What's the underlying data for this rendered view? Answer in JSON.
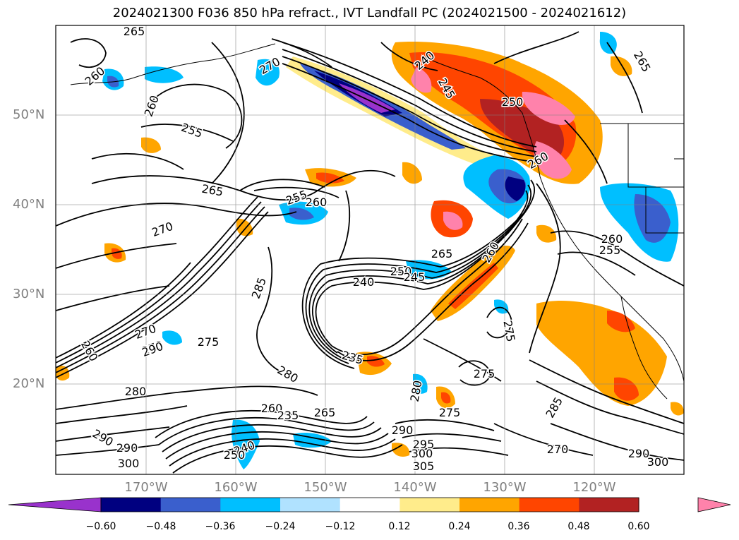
{
  "title": "2024021300 F036 850 hPa refract., IVT Landfall PC (2024021500 - 2024021612)",
  "map": {
    "lat_labels": [
      "50°N",
      "40°N",
      "30°N",
      "20°N"
    ],
    "lon_labels": [
      "170°W",
      "160°W",
      "150°W",
      "140°W",
      "130°W",
      "120°W"
    ],
    "contour_labels": [
      {
        "t": "265"
      },
      {
        "t": "260"
      },
      {
        "t": "260"
      },
      {
        "t": "255"
      },
      {
        "t": "270"
      },
      {
        "t": "265"
      },
      {
        "t": "255"
      },
      {
        "t": "260"
      },
      {
        "t": "270"
      },
      {
        "t": "285"
      },
      {
        "t": "240"
      },
      {
        "t": "245"
      },
      {
        "t": "250"
      },
      {
        "t": "260"
      },
      {
        "t": "265"
      },
      {
        "t": "265"
      },
      {
        "t": "250"
      },
      {
        "t": "245"
      },
      {
        "t": "260"
      },
      {
        "t": "275"
      },
      {
        "t": "255"
      },
      {
        "t": "260"
      },
      {
        "t": "240"
      },
      {
        "t": "270"
      },
      {
        "t": "270"
      },
      {
        "t": "290"
      },
      {
        "t": "275"
      },
      {
        "t": "260"
      },
      {
        "t": "280"
      },
      {
        "t": "235"
      },
      {
        "t": "280"
      },
      {
        "t": "275"
      },
      {
        "t": "275"
      },
      {
        "t": "285"
      },
      {
        "t": "280"
      },
      {
        "t": "290"
      },
      {
        "t": "290"
      },
      {
        "t": "300"
      },
      {
        "t": "260"
      },
      {
        "t": "265"
      },
      {
        "t": "235"
      },
      {
        "t": "240"
      },
      {
        "t": "250"
      },
      {
        "t": "290"
      },
      {
        "t": "295"
      },
      {
        "t": "300"
      },
      {
        "t": "305"
      },
      {
        "t": "270"
      },
      {
        "t": "290"
      },
      {
        "t": "300"
      }
    ]
  },
  "colorbar": {
    "ticks": [
      "−0.60",
      "−0.48",
      "−0.36",
      "−0.24",
      "−0.12",
      "0.12",
      "0.24",
      "0.36",
      "0.48",
      "0.60"
    ],
    "colors": [
      "#9932cc",
      "#000080",
      "#3a5fcd",
      "#00bfff",
      "#b0e2ff",
      "#ffffff",
      "#ffec8b",
      "#ffa500",
      "#ff4500",
      "#b22222",
      "#ff82ab"
    ]
  }
}
